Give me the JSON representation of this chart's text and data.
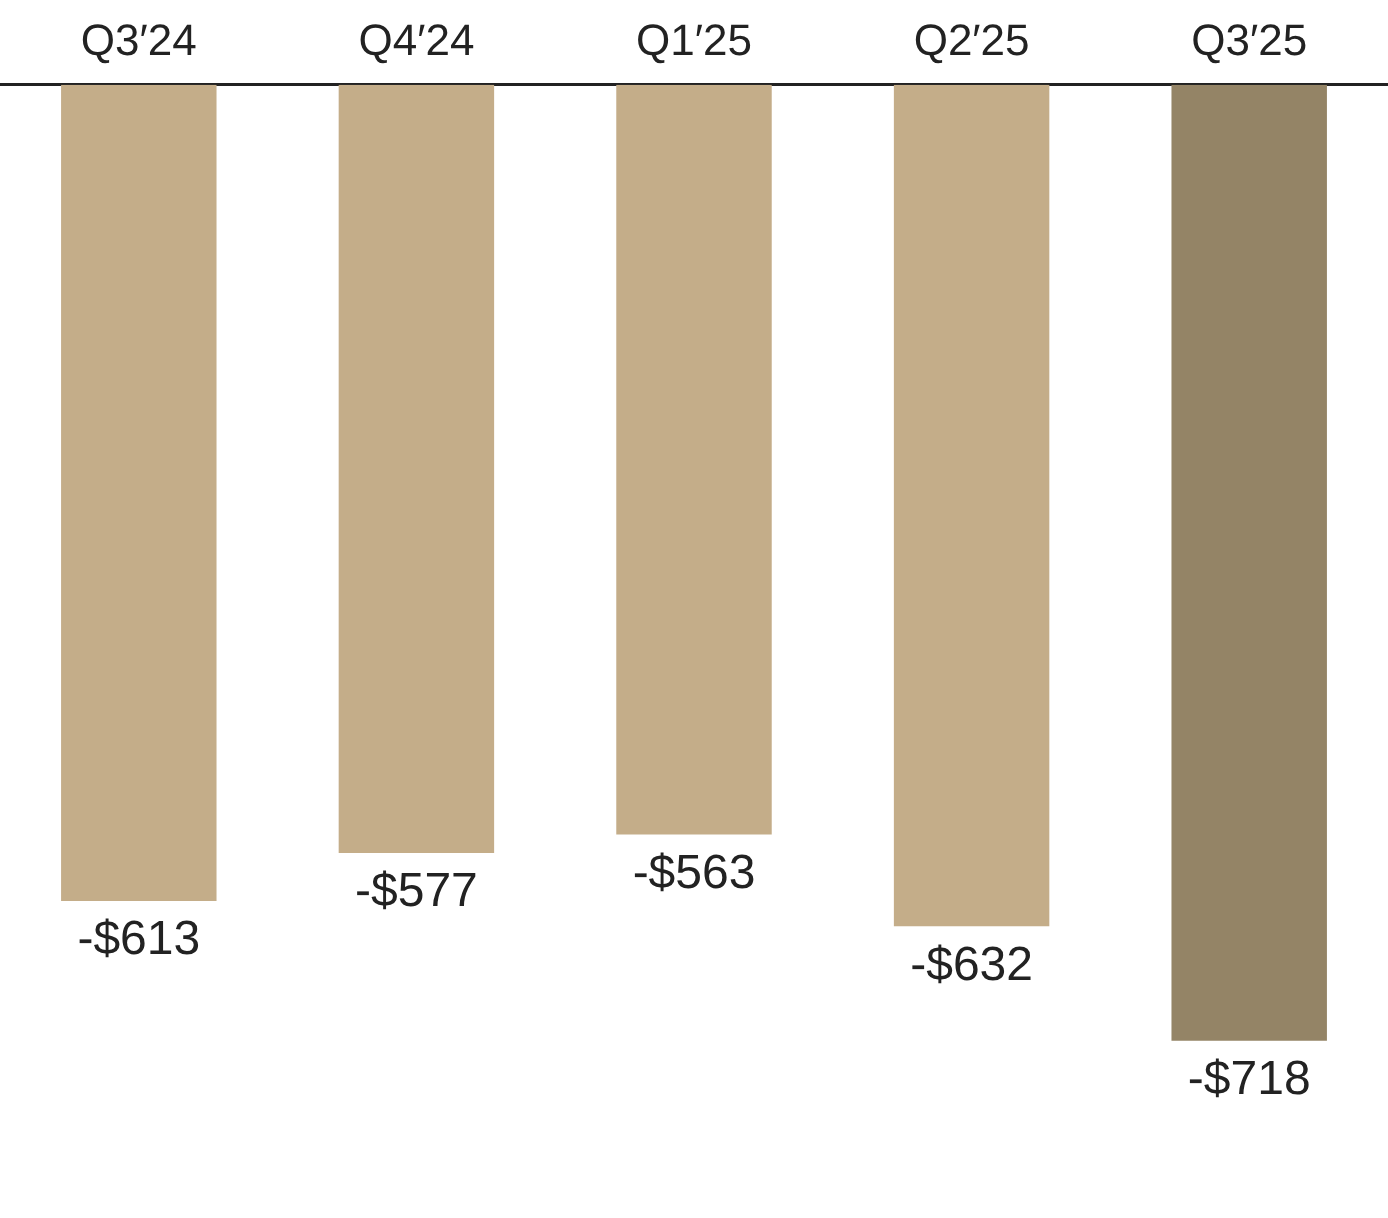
{
  "chart_data": {
    "type": "bar",
    "categories": [
      "Q3′24",
      "Q4′24",
      "Q1′25",
      "Q2′25",
      "Q3′25"
    ],
    "values": [
      -613,
      -577,
      -563,
      -632,
      -718
    ],
    "colors": [
      "#c4ad89",
      "#c4ad89",
      "#c4ad89",
      "#c4ad89",
      "#948466"
    ],
    "value_labels": [
      "-$613",
      "-$577",
      "-$563",
      "-$632",
      "-$718"
    ],
    "grid": false,
    "legend": false
  }
}
